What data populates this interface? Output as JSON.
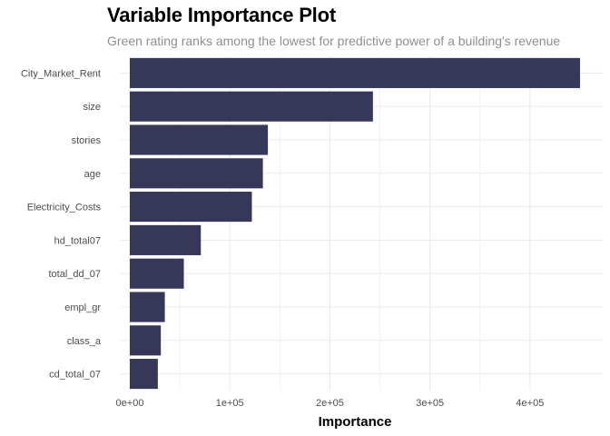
{
  "chart_data": {
    "type": "bar",
    "orientation": "horizontal",
    "title": "Variable Importance Plot",
    "subtitle": "Green rating ranks among the lowest for predictive power of a building's revenue",
    "xlabel": "Importance",
    "ylabel": "",
    "xlim": [
      0,
      450000
    ],
    "x_ticks": [
      0,
      100000,
      200000,
      300000,
      400000
    ],
    "x_tick_labels": [
      "0e+00",
      "1e+05",
      "2e+05",
      "3e+05",
      "4e+05"
    ],
    "grid": true,
    "legend": "none",
    "bar_color": "#37375a",
    "grid_color": "#ebebeb",
    "categories": [
      "City_Market_Rent",
      "size",
      "stories",
      "age",
      "Electricity_Costs",
      "hd_total07",
      "total_dd_07",
      "empl_gr",
      "class_a",
      "cd_total_07"
    ],
    "values": [
      450000,
      243000,
      138000,
      133000,
      122000,
      71000,
      54000,
      35000,
      31000,
      28000
    ]
  }
}
